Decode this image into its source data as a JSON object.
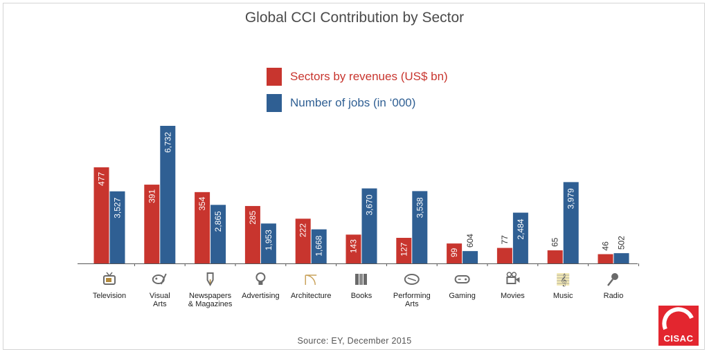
{
  "title": "Global CCI Contribution  by Sector",
  "source": "Source: EY, December 2015",
  "logo_text": "CISAC",
  "colors": {
    "revenue": "#c8352e",
    "jobs": "#2f5f93",
    "title": "#4a4a4a",
    "logo": "#e3262f"
  },
  "legend": [
    {
      "label": "Sectors by revenues (US$ bn)",
      "color": "#c8352e"
    },
    {
      "label": "Number of jobs (in ‘000)",
      "color": "#2f5f93"
    }
  ],
  "chart_data": {
    "type": "bar",
    "title": "Global CCI Contribution  by Sector",
    "categories": [
      "Television",
      "Visual\nArts",
      "Newspapers\n& Magazines",
      "Advertising",
      "Architecture",
      "Books",
      "Performing\nArts",
      "Gaming",
      "Movies",
      "Music",
      "Radio"
    ],
    "icons": [
      "tv-icon",
      "palette-icon",
      "pen-nib-icon",
      "lightbulb-icon",
      "compass-icon",
      "books-icon",
      "theatre-icon",
      "gamepad-icon",
      "movie-camera-icon",
      "music-note-icon",
      "microphone-icon"
    ],
    "series": [
      {
        "name": "Sectors by revenues (US$ bn)",
        "values": [
          477,
          391,
          354,
          285,
          222,
          143,
          127,
          99,
          77,
          65,
          46
        ],
        "labels": [
          "477",
          "391",
          "354",
          "285",
          "222",
          "143",
          "127",
          "99",
          "77",
          "65",
          "46"
        ]
      },
      {
        "name": "Number of jobs (in ‘000)",
        "values": [
          3527,
          6732,
          2865,
          1953,
          1668,
          3670,
          3538,
          604,
          2484,
          3979,
          502
        ],
        "labels": [
          "3,527",
          "6,732",
          "2,865",
          "1,953",
          "1,668",
          "3,670",
          "3,538",
          "604",
          "2,484",
          "3,979",
          "502"
        ]
      }
    ],
    "legend_position": "top-center",
    "grid": false
  }
}
